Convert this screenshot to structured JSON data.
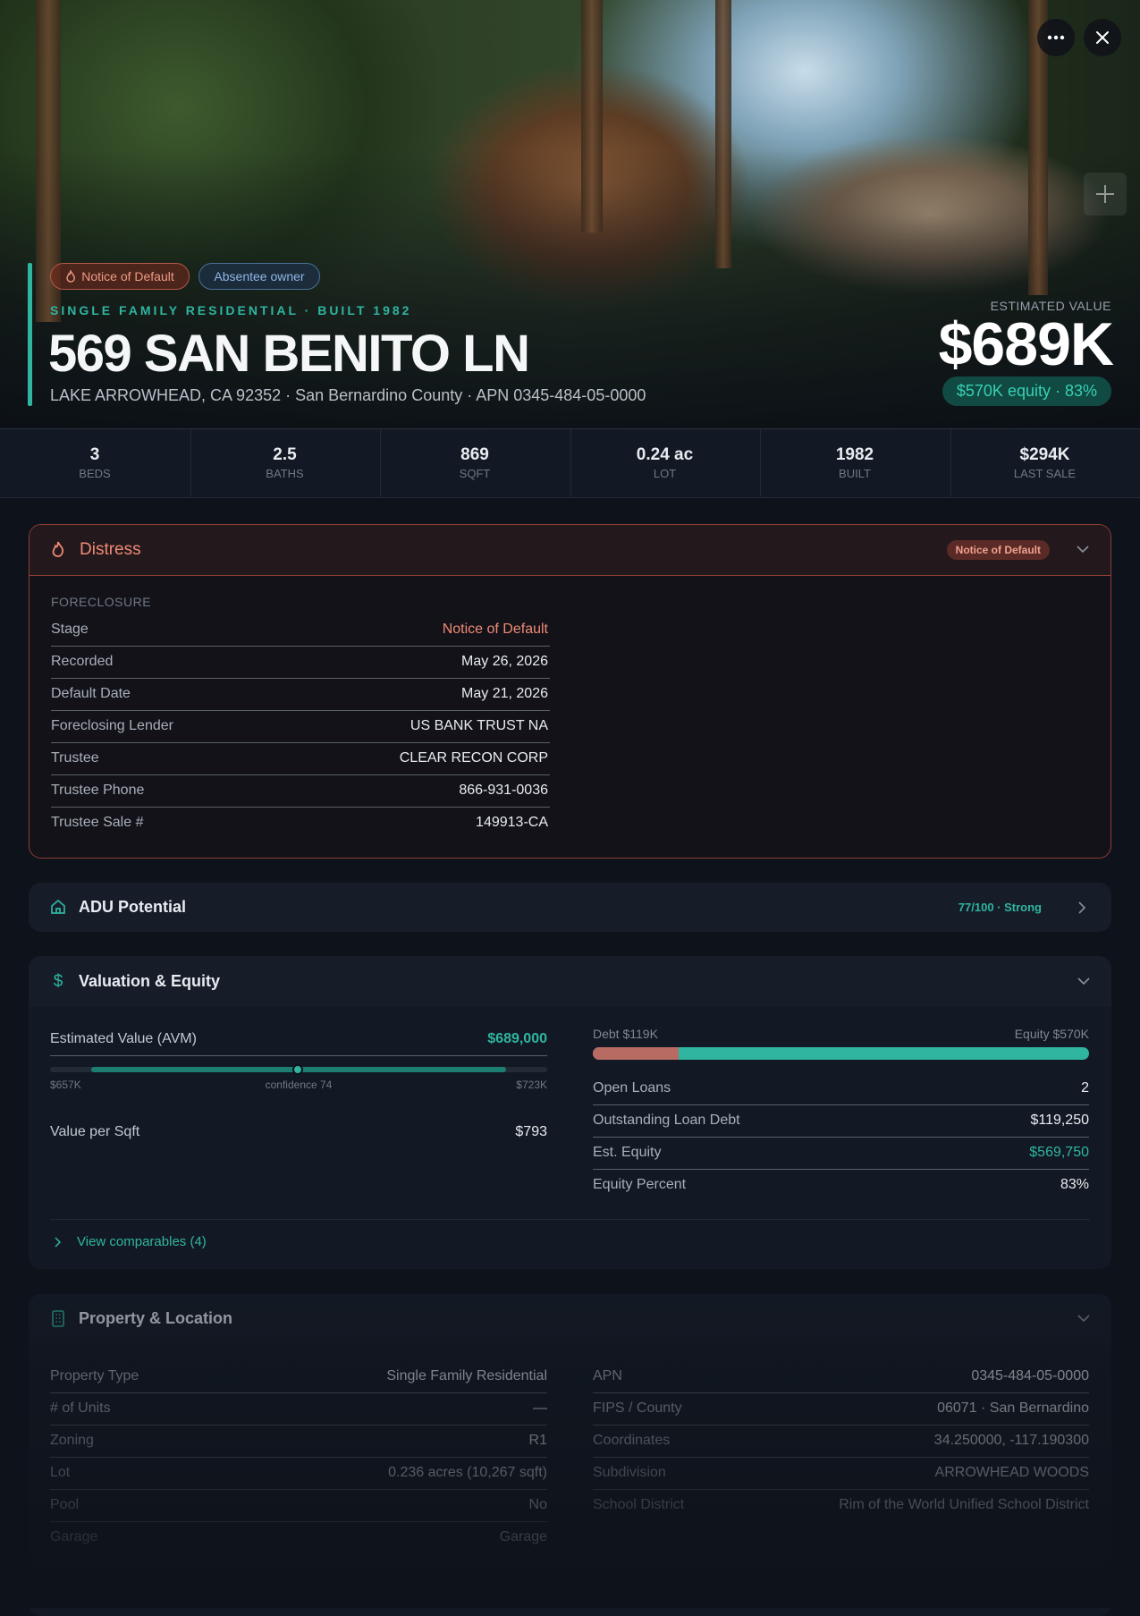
{
  "hero": {
    "badges": [
      "Notice of Default",
      "Absentee owner"
    ],
    "subtitle": "SINGLE FAMILY RESIDENTIAL · BUILT 1982",
    "title": "569 SAN BENITO LN",
    "address": "LAKE ARROWHEAD, CA 92352 · San Bernardino County · APN 0345-484-05-0000",
    "estimate_label": "ESTIMATED VALUE",
    "estimate": "$689K",
    "equity": "$570K equity · 83%"
  },
  "stats": [
    {
      "value": "3",
      "label": "BEDS"
    },
    {
      "value": "2.5",
      "label": "BATHS"
    },
    {
      "value": "869",
      "label": "SQFT"
    },
    {
      "value": "0.24 ac",
      "label": "LOT"
    },
    {
      "value": "1982",
      "label": "BUILT"
    },
    {
      "value": "$294K",
      "label": "LAST SALE"
    }
  ],
  "distress": {
    "title": "Distress",
    "badge": "Notice of Default",
    "section": "FORECLOSURE",
    "rows": [
      [
        "Stage",
        "Notice of Default"
      ],
      [
        "Recorded",
        "May 26, 2026"
      ],
      [
        "Default Date",
        "May 21, 2026"
      ],
      [
        "Foreclosing Lender",
        "US BANK TRUST NA"
      ],
      [
        "Trustee",
        "CLEAR RECON CORP"
      ],
      [
        "Trustee Phone",
        "866-931-0036"
      ],
      [
        "Trustee Sale #",
        "149913-CA"
      ]
    ]
  },
  "adu": {
    "title": "ADU Potential",
    "score": "77/100 · Strong"
  },
  "valuation": {
    "title": "Valuation & Equity",
    "avm": [
      "Estimated Value (AVM)",
      "$689,000"
    ],
    "range": {
      "low": "$657K",
      "confidence": "confidence 74",
      "high": "$723K"
    },
    "per_sqft": [
      "Value per Sqft",
      "$793"
    ],
    "debt_label": "Debt $119K",
    "equity_label": "Equity $570K",
    "rows": [
      [
        "Open Loans",
        "2"
      ],
      [
        "Outstanding Loan Debt",
        "$119,250"
      ],
      [
        "Est. Equity",
        "$569,750"
      ],
      [
        "Equity Percent",
        "83%"
      ]
    ],
    "comparables": "View comparables (4)"
  },
  "property": {
    "title": "Property & Location",
    "left_rows": [
      [
        "Property Type",
        "Single Family Residential"
      ],
      [
        "# of Units",
        "—"
      ],
      [
        "Zoning",
        "R1"
      ],
      [
        "Lot",
        "0.236 acres (10,267 sqft)"
      ],
      [
        "Pool",
        "No"
      ],
      [
        "Garage",
        "Garage"
      ]
    ],
    "right_rows": [
      [
        "APN",
        "0345-484-05-0000"
      ],
      [
        "FIPS / County",
        "06071 · San Bernardino"
      ],
      [
        "Coordinates",
        "34.250000, -117.190300"
      ],
      [
        "Subdivision",
        "ARROWHEAD WOODS"
      ],
      [
        "School District",
        "Rim of the World Unified School District"
      ]
    ]
  }
}
